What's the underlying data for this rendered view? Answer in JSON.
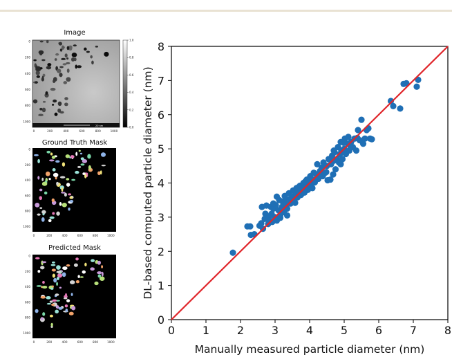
{
  "panels": {
    "image": {
      "title": "Image",
      "scale_bar": "20 nm",
      "colorbar_ticks": [
        "1.0",
        "0.8",
        "0.6",
        "0.4",
        "0.2",
        "0.0"
      ]
    },
    "ground_truth": {
      "title": "Ground Truth Mask"
    },
    "predicted": {
      "title": "Predicted Mask"
    },
    "small_axis_ticks": {
      "y": [
        "0",
        "200",
        "400",
        "600",
        "800",
        "1000"
      ],
      "x": [
        "0",
        "200",
        "400",
        "600",
        "800",
        "1000"
      ]
    }
  },
  "chart_data": {
    "type": "scatter",
    "title": "",
    "xlabel": "Manually measured particle diameter (nm)",
    "ylabel": "DL-based computed particle diameter (nm)",
    "xlim": [
      0,
      8
    ],
    "ylim": [
      0,
      8
    ],
    "xticks": [
      0,
      1,
      2,
      3,
      4,
      5,
      6,
      7,
      8
    ],
    "yticks": [
      0,
      1,
      2,
      3,
      4,
      5,
      6,
      7,
      8
    ],
    "grid": false,
    "point_color": "#1f6fb5",
    "reference_line": {
      "from": [
        0,
        0
      ],
      "to": [
        8,
        8
      ],
      "color": "#e0262b"
    },
    "points": [
      [
        1.78,
        1.96
      ],
      [
        2.2,
        2.73
      ],
      [
        2.28,
        2.73
      ],
      [
        2.3,
        2.48
      ],
      [
        2.4,
        2.5
      ],
      [
        2.55,
        2.75
      ],
      [
        2.6,
        2.82
      ],
      [
        2.62,
        3.3
      ],
      [
        2.65,
        2.66
      ],
      [
        2.7,
        2.95
      ],
      [
        2.72,
        3.1
      ],
      [
        2.75,
        3.34
      ],
      [
        2.8,
        2.8
      ],
      [
        2.82,
        3.0
      ],
      [
        2.85,
        2.9
      ],
      [
        2.88,
        3.3
      ],
      [
        2.9,
        3.1
      ],
      [
        2.92,
        2.86
      ],
      [
        2.95,
        3.25
      ],
      [
        3.0,
        3.0
      ],
      [
        3.02,
        3.35
      ],
      [
        3.05,
        2.9
      ],
      [
        3.05,
        3.6
      ],
      [
        3.1,
        3.2
      ],
      [
        3.12,
        3.5
      ],
      [
        3.15,
        3.05
      ],
      [
        3.2,
        3.3
      ],
      [
        3.22,
        3.45
      ],
      [
        3.25,
        3.15
      ],
      [
        3.3,
        3.55
      ],
      [
        3.32,
        3.38
      ],
      [
        3.35,
        3.25
      ],
      [
        3.4,
        3.7
      ],
      [
        3.42,
        3.52
      ],
      [
        3.45,
        3.4
      ],
      [
        3.5,
        3.6
      ],
      [
        3.52,
        3.78
      ],
      [
        3.55,
        3.5
      ],
      [
        3.6,
        3.68
      ],
      [
        3.62,
        3.85
      ],
      [
        3.65,
        3.58
      ],
      [
        3.7,
        3.75
      ],
      [
        3.72,
        3.92
      ],
      [
        3.75,
        3.65
      ],
      [
        3.8,
        3.82
      ],
      [
        3.82,
        4.0
      ],
      [
        3.85,
        3.72
      ],
      [
        3.9,
        3.9
      ],
      [
        3.92,
        4.1
      ],
      [
        3.95,
        3.8
      ],
      [
        4.0,
        4.0
      ],
      [
        4.02,
        4.2
      ],
      [
        4.05,
        3.9
      ],
      [
        4.1,
        4.1
      ],
      [
        4.12,
        4.3
      ],
      [
        4.15,
        4.02
      ],
      [
        4.2,
        4.25
      ],
      [
        4.22,
        4.55
      ],
      [
        4.25,
        4.12
      ],
      [
        4.3,
        4.35
      ],
      [
        4.35,
        4.45
      ],
      [
        4.38,
        4.2
      ],
      [
        4.4,
        4.6
      ],
      [
        4.45,
        4.3
      ],
      [
        4.5,
        4.5
      ],
      [
        4.52,
        4.08
      ],
      [
        4.55,
        4.7
      ],
      [
        4.6,
        4.1
      ],
      [
        4.62,
        4.55
      ],
      [
        4.65,
        4.8
      ],
      [
        4.7,
        4.65
      ],
      [
        4.72,
        4.9
      ],
      [
        4.75,
        4.4
      ],
      [
        4.8,
        4.7
      ],
      [
        4.82,
        5.05
      ],
      [
        4.85,
        4.6
      ],
      [
        4.88,
        4.85
      ],
      [
        4.9,
        5.2
      ],
      [
        4.92,
        4.95
      ],
      [
        4.95,
        4.7
      ],
      [
        5.0,
        5.0
      ],
      [
        5.02,
        5.3
      ],
      [
        5.05,
        4.85
      ],
      [
        5.1,
        5.15
      ],
      [
        5.12,
        5.35
      ],
      [
        5.15,
        4.95
      ],
      [
        5.2,
        5.2
      ],
      [
        5.25,
        5.05
      ],
      [
        5.3,
        5.3
      ],
      [
        5.35,
        4.95
      ],
      [
        5.4,
        5.55
      ],
      [
        5.45,
        5.25
      ],
      [
        5.5,
        5.85
      ],
      [
        5.55,
        5.15
      ],
      [
        5.6,
        5.3
      ],
      [
        5.65,
        5.55
      ],
      [
        5.7,
        5.6
      ],
      [
        5.75,
        5.3
      ],
      [
        5.8,
        5.28
      ],
      [
        6.35,
        6.4
      ],
      [
        6.42,
        6.25
      ],
      [
        6.62,
        6.18
      ],
      [
        6.72,
        6.9
      ],
      [
        6.8,
        6.92
      ],
      [
        7.1,
        6.82
      ],
      [
        7.14,
        7.02
      ],
      [
        3.15,
        2.98
      ],
      [
        3.35,
        3.05
      ],
      [
        2.95,
        3.4
      ],
      [
        3.28,
        3.62
      ],
      [
        3.58,
        3.42
      ],
      [
        3.88,
        4.05
      ],
      [
        4.08,
        3.85
      ],
      [
        4.28,
        4.18
      ],
      [
        4.48,
        4.32
      ],
      [
        4.68,
        4.25
      ],
      [
        4.98,
        5.18
      ],
      [
        5.18,
        5.08
      ],
      [
        5.38,
        5.32
      ],
      [
        4.9,
        4.55
      ],
      [
        4.7,
        4.95
      ],
      [
        3.68,
        3.88
      ]
    ]
  }
}
